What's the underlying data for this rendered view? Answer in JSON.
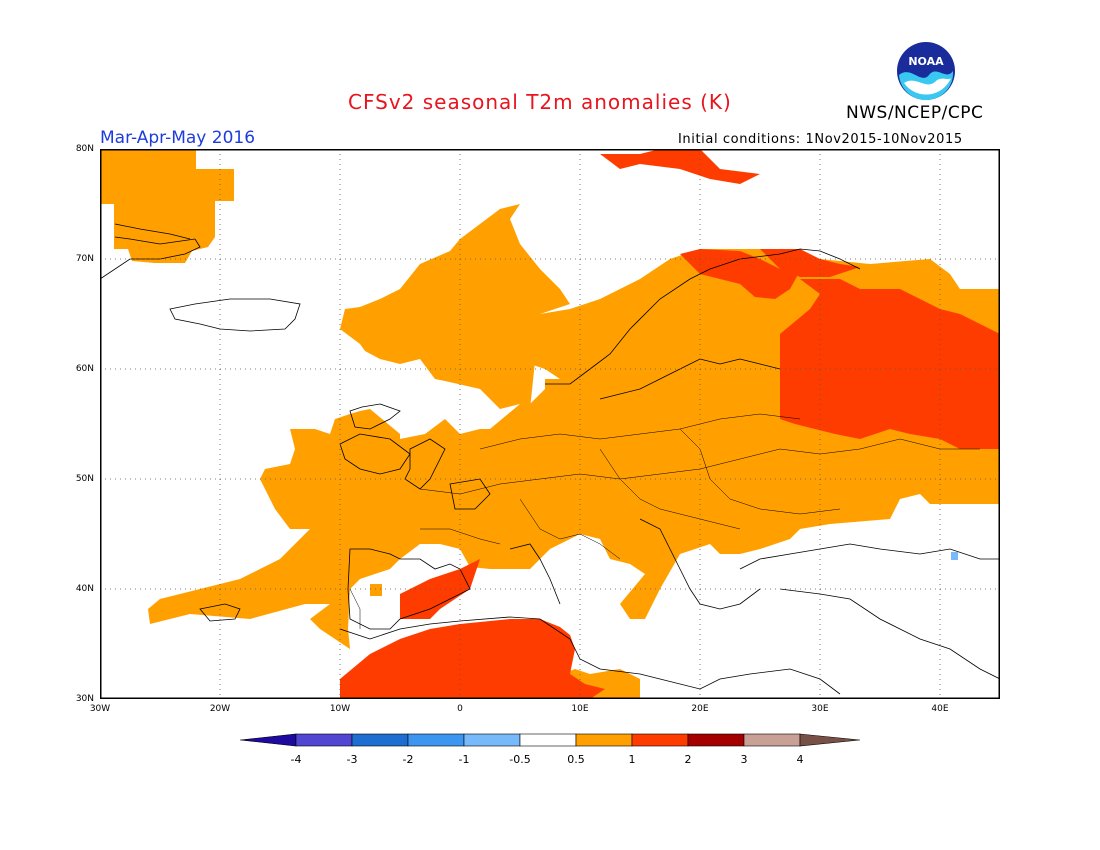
{
  "header": {
    "title": "CFSv2 seasonal T2m anomalies (K)",
    "period": "Mar-Apr-May 2016",
    "agency": "NWS/NCEP/CPC",
    "initial_conditions": "Initial conditions: 1Nov2015-10Nov2015",
    "logo_text": "NOAA"
  },
  "map": {
    "lat_labels": [
      "80N",
      "70N",
      "60N",
      "50N",
      "40N",
      "30N"
    ],
    "lon_labels": [
      "30W",
      "20W",
      "10W",
      "0",
      "10E",
      "20E",
      "30E",
      "40E"
    ],
    "lat_range": [
      30,
      80
    ],
    "lon_range": [
      -30,
      45
    ],
    "grid": "dotted"
  },
  "legend": {
    "labels": [
      "-4",
      "-3",
      "-2",
      "-1",
      "-0.5",
      "0.5",
      "1",
      "2",
      "3",
      "4"
    ],
    "colors": [
      "#1e0aa0",
      "#5046d2",
      "#1e6ed2",
      "#3c96f0",
      "#78b9fa",
      "#ffffff",
      "#ffa000",
      "#ff3c00",
      "#a50000",
      "#c8a096",
      "#785046"
    ]
  },
  "colors": {
    "anom_0p5_1": "#ffa000",
    "anom_1_2": "#ff3c00",
    "anom_neg_1": "#78b9fa",
    "title": "#e8141e",
    "period": "#1e3cdc"
  }
}
